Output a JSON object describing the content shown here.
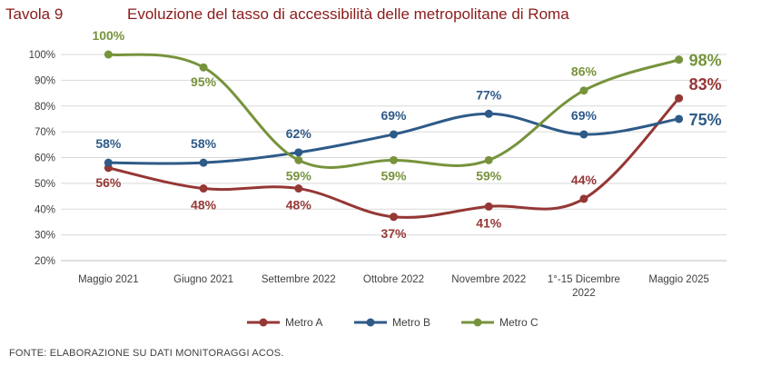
{
  "header": {
    "table_label": "Tavola 9",
    "title": "Evoluzione del tasso di accessibilità delle metropolitane di Roma"
  },
  "footer": {
    "source": "FONTE: ELABORAZIONE SU DATI MONITORAGGI ACOS."
  },
  "chart_data": {
    "type": "line",
    "title": "Evoluzione del tasso di accessibilità delle metropolitane di Roma",
    "categories": [
      [
        "Maggio 2021"
      ],
      [
        "Giugno 2021"
      ],
      [
        "Settembre 2022"
      ],
      [
        "Ottobre 2022"
      ],
      [
        "Novembre 2022"
      ],
      [
        "1°-15 Dicembre",
        "2022"
      ],
      [
        "Maggio 2025"
      ]
    ],
    "y_ticks": [
      "20%",
      "30%",
      "40%",
      "50%",
      "60%",
      "70%",
      "80%",
      "90%",
      "100%"
    ],
    "ylim": [
      20,
      100
    ],
    "grid": true,
    "legend_position": "bottom",
    "series": [
      {
        "name": "Metro A",
        "color": "#953735",
        "values": [
          56,
          48,
          48,
          37,
          41,
          44,
          83
        ],
        "labels": [
          "56%",
          "48%",
          "48%",
          "37%",
          "41%",
          "44%",
          "83%"
        ]
      },
      {
        "name": "Metro B",
        "color": "#2e5a88",
        "values": [
          58,
          58,
          62,
          69,
          77,
          69,
          75
        ],
        "labels": [
          "58%",
          "58%",
          "62%",
          "69%",
          "77%",
          "69%",
          "75%"
        ]
      },
      {
        "name": "Metro C",
        "color": "#77933c",
        "values": [
          100,
          95,
          59,
          59,
          59,
          86,
          98
        ],
        "labels": [
          "100%",
          "95%",
          "59%",
          "59%",
          "59%",
          "86%",
          "98%"
        ]
      }
    ]
  }
}
